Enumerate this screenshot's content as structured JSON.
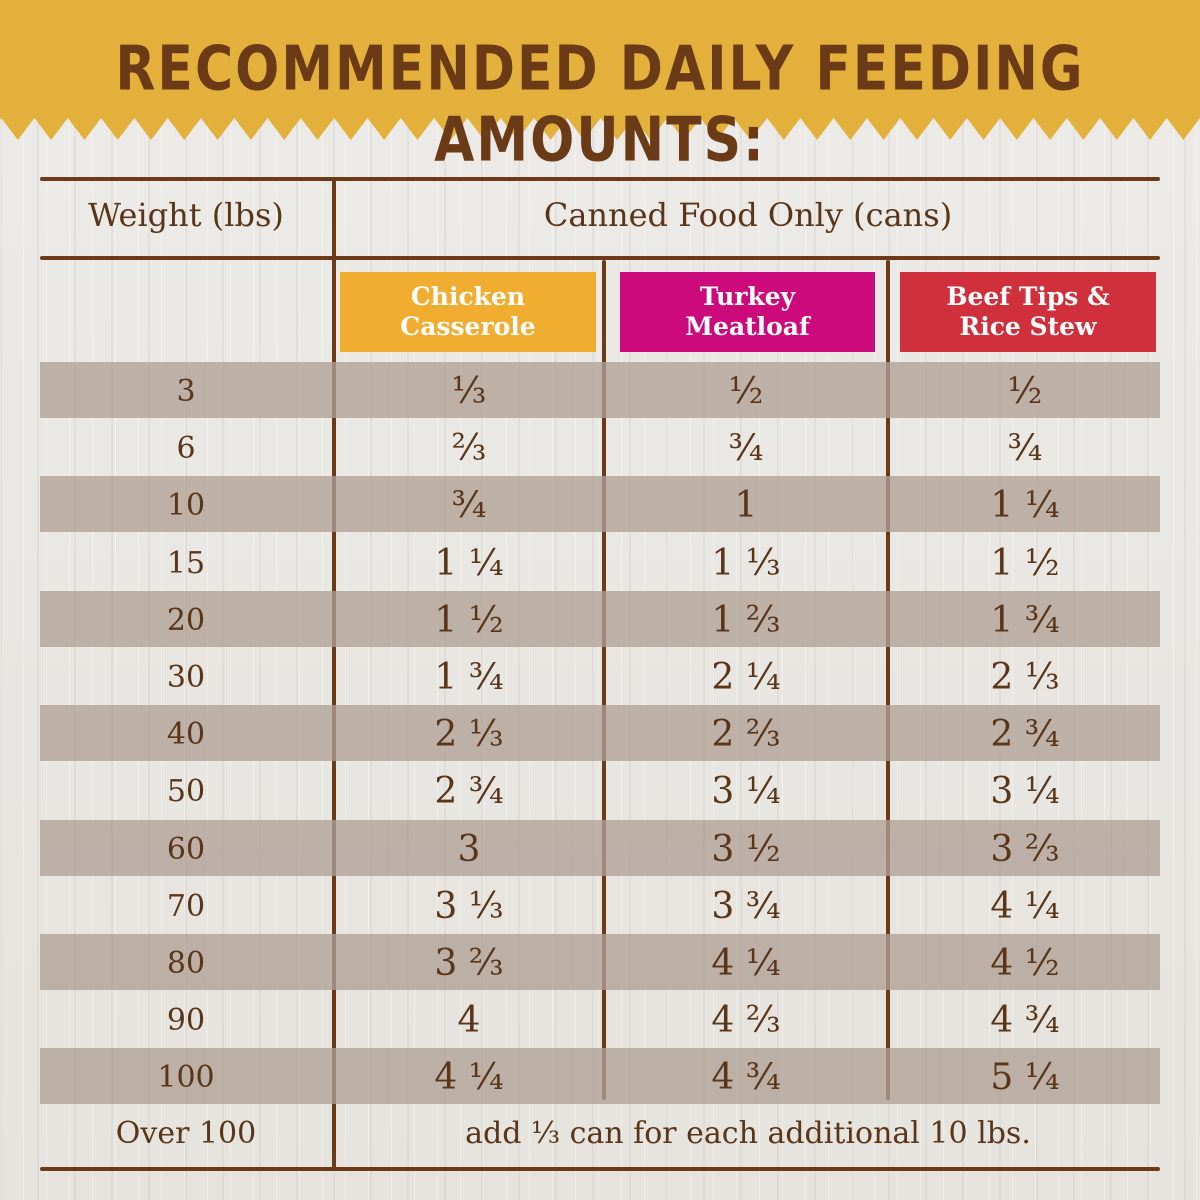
{
  "title": "RECOMMENDED DAILY FEEDING AMOUNTS:",
  "colors": {
    "banner": "#e4b03c",
    "text": "#6b3a17",
    "chicken": "#f0ad30",
    "turkey": "#cc0a7c",
    "beef": "#d0303c"
  },
  "headers": {
    "weight": "Weight (lbs)",
    "canned": "Canned Food Only (cans)",
    "chicken": [
      "Chicken",
      "Casserole"
    ],
    "turkey": [
      "Turkey",
      "Meatloaf"
    ],
    "beef": [
      "Beef Tips &",
      "Rice Stew"
    ]
  },
  "rows": [
    {
      "weight": "3",
      "chicken": "⅓",
      "turkey": "½",
      "beef": "½"
    },
    {
      "weight": "6",
      "chicken": "⅔",
      "turkey": "¾",
      "beef": "¾"
    },
    {
      "weight": "10",
      "chicken": "¾",
      "turkey": "1",
      "beef": "1 ¼"
    },
    {
      "weight": "15",
      "chicken": "1 ¼",
      "turkey": "1 ⅓",
      "beef": "1 ½"
    },
    {
      "weight": "20",
      "chicken": "1 ½",
      "turkey": "1 ⅔",
      "beef": "1 ¾"
    },
    {
      "weight": "30",
      "chicken": "1 ¾",
      "turkey": "2 ¼",
      "beef": "2 ⅓"
    },
    {
      "weight": "40",
      "chicken": "2 ⅓",
      "turkey": "2 ⅔",
      "beef": "2 ¾"
    },
    {
      "weight": "50",
      "chicken": "2 ¾",
      "turkey": "3 ¼",
      "beef": "3 ¼"
    },
    {
      "weight": "60",
      "chicken": "3",
      "turkey": "3 ½",
      "beef": "3 ⅔"
    },
    {
      "weight": "70",
      "chicken": "3 ⅓",
      "turkey": "3 ¾",
      "beef": "4 ¼"
    },
    {
      "weight": "80",
      "chicken": "3 ⅔",
      "turkey": "4 ¼",
      "beef": "4 ½"
    },
    {
      "weight": "90",
      "chicken": "4",
      "turkey": "4 ⅔",
      "beef": "4 ¾"
    },
    {
      "weight": "100",
      "chicken": "4 ¼",
      "turkey": "4 ¾",
      "beef": "5 ¼"
    }
  ],
  "footer": {
    "weight": "Over 100",
    "note": "add ⅓ can for each additional 10 lbs."
  }
}
